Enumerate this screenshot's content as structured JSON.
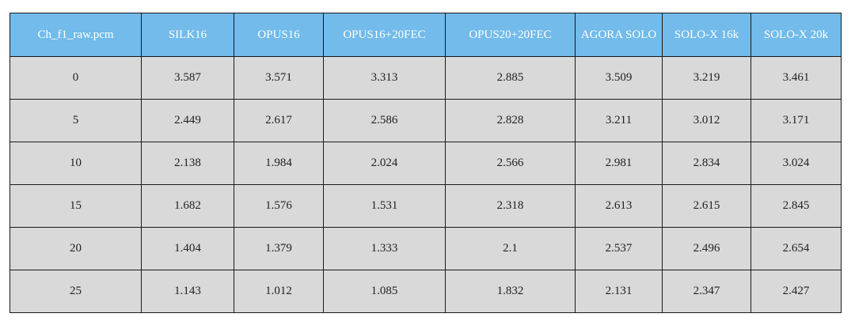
{
  "table": {
    "header": [
      "Ch_f1_raw.pcm",
      "SILK16",
      "OPUS16",
      "OPUS16+20FEC",
      "OPUS20+20FEC",
      "AGORA SOLO",
      "SOLO-X 16k",
      "SOLO-X 20k"
    ],
    "rows": [
      [
        0,
        3.587,
        3.571,
        3.313,
        2.885,
        3.509,
        3.219,
        3.461
      ],
      [
        5,
        2.449,
        2.617,
        2.586,
        2.828,
        3.211,
        3.012,
        3.171
      ],
      [
        10,
        2.138,
        1.984,
        2.024,
        2.566,
        2.981,
        2.834,
        3.024
      ],
      [
        15,
        1.682,
        1.576,
        1.531,
        2.318,
        2.613,
        2.615,
        2.845
      ],
      [
        20,
        1.404,
        1.379,
        1.333,
        2.1,
        2.537,
        2.496,
        2.654
      ],
      [
        25,
        1.143,
        1.012,
        1.085,
        1.832,
        2.131,
        2.347,
        2.427
      ]
    ]
  }
}
